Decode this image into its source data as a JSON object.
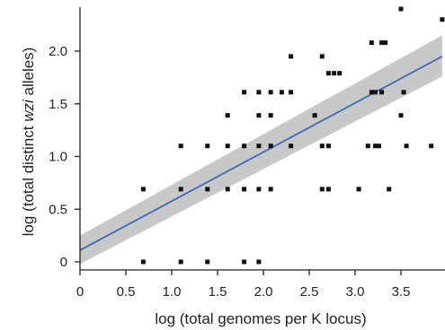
{
  "chart_data": {
    "type": "scatter",
    "title": "",
    "xlabel": "log (total genomes per K locus)",
    "ylabel": {
      "before": "log (total distinct ",
      "italic": "wzi",
      "after": " alleles)"
    },
    "xlim": [
      0,
      3.95
    ],
    "ylim": [
      -0.08,
      2.4
    ],
    "xticks": [
      0,
      0.5,
      1.0,
      1.5,
      2.0,
      2.5,
      3.0,
      3.5
    ],
    "xtick_labels": [
      "0",
      "0.5",
      "1.0",
      "1.5",
      "2.0",
      "2.5",
      "3.0",
      "3.5"
    ],
    "yticks": [
      0,
      0.5,
      1.0,
      1.5,
      2.0
    ],
    "ytick_labels": [
      "0",
      "0.5",
      "1.0",
      "1.5",
      "2.0"
    ],
    "grid": false,
    "legend": "none",
    "colors": {
      "points": "#111111",
      "fit_line": "#3a6ab5",
      "confidence_band": "#c8c8c8",
      "axis": "#222222"
    },
    "series": [
      {
        "type": "scatter",
        "points": [
          {
            "x": 0.69,
            "y": 0.0
          },
          {
            "x": 0.69,
            "y": 0.69
          },
          {
            "x": 1.1,
            "y": 0.0
          },
          {
            "x": 1.1,
            "y": 0.69
          },
          {
            "x": 1.1,
            "y": 1.1
          },
          {
            "x": 1.39,
            "y": 0.0
          },
          {
            "x": 1.39,
            "y": 0.69
          },
          {
            "x": 1.39,
            "y": 1.1
          },
          {
            "x": 1.61,
            "y": 0.69
          },
          {
            "x": 1.61,
            "y": 1.1
          },
          {
            "x": 1.61,
            "y": 1.39
          },
          {
            "x": 1.79,
            "y": 0.0
          },
          {
            "x": 1.79,
            "y": 0.69
          },
          {
            "x": 1.79,
            "y": 1.1
          },
          {
            "x": 1.79,
            "y": 1.61
          },
          {
            "x": 1.95,
            "y": 0.0
          },
          {
            "x": 1.95,
            "y": 0.69
          },
          {
            "x": 1.95,
            "y": 1.1
          },
          {
            "x": 1.95,
            "y": 1.39
          },
          {
            "x": 1.95,
            "y": 1.61
          },
          {
            "x": 2.08,
            "y": 0.69
          },
          {
            "x": 2.08,
            "y": 1.1
          },
          {
            "x": 2.08,
            "y": 1.39
          },
          {
            "x": 2.08,
            "y": 1.61
          },
          {
            "x": 2.2,
            "y": 1.61
          },
          {
            "x": 2.3,
            "y": 1.1
          },
          {
            "x": 2.3,
            "y": 1.61
          },
          {
            "x": 2.3,
            "y": 1.95
          },
          {
            "x": 2.56,
            "y": 1.39
          },
          {
            "x": 2.64,
            "y": 0.69
          },
          {
            "x": 2.64,
            "y": 1.1
          },
          {
            "x": 2.64,
            "y": 1.95
          },
          {
            "x": 2.71,
            "y": 0.69
          },
          {
            "x": 2.71,
            "y": 1.1
          },
          {
            "x": 2.71,
            "y": 1.79
          },
          {
            "x": 2.77,
            "y": 1.79
          },
          {
            "x": 2.83,
            "y": 1.79
          },
          {
            "x": 3.04,
            "y": 0.69
          },
          {
            "x": 3.14,
            "y": 1.1
          },
          {
            "x": 3.18,
            "y": 1.61
          },
          {
            "x": 3.18,
            "y": 2.08
          },
          {
            "x": 3.22,
            "y": 1.1
          },
          {
            "x": 3.22,
            "y": 1.61
          },
          {
            "x": 3.26,
            "y": 1.1
          },
          {
            "x": 3.29,
            "y": 1.61
          },
          {
            "x": 3.29,
            "y": 2.08
          },
          {
            "x": 3.33,
            "y": 2.08
          },
          {
            "x": 3.37,
            "y": 0.69
          },
          {
            "x": 3.5,
            "y": 1.39
          },
          {
            "x": 3.5,
            "y": 2.4
          },
          {
            "x": 3.53,
            "y": 1.61
          },
          {
            "x": 3.56,
            "y": 1.1
          },
          {
            "x": 3.83,
            "y": 1.1
          },
          {
            "x": 3.95,
            "y": 2.3
          }
        ]
      },
      {
        "type": "line",
        "x": [
          0,
          3.95
        ],
        "y": [
          0.11,
          1.95
        ],
        "band_lower": [
          -0.02,
          1.76
        ],
        "band_upper": [
          0.25,
          2.15
        ]
      }
    ]
  }
}
